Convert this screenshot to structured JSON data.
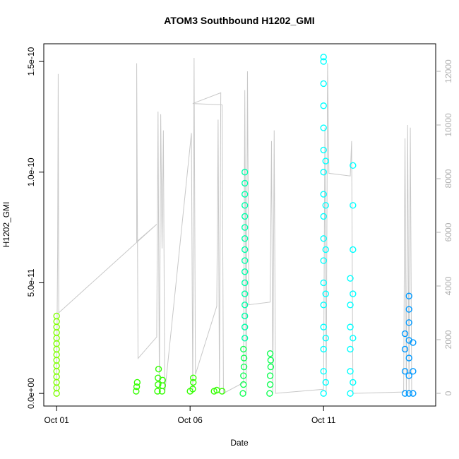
{
  "chart_data": {
    "type": "scatter",
    "title": "ATOM3 Southbound H1202_GMI",
    "x_label": "Date",
    "y_label": "H1202_GMI",
    "xlim": [
      0.52,
      15.2
    ],
    "xticks": [
      {
        "value": 1,
        "label": "Oct 01"
      },
      {
        "value": 6,
        "label": "Oct 06"
      },
      {
        "value": 11,
        "label": "Oct 11"
      }
    ],
    "ylim": [
      -5.7e-12,
      1.58e-10
    ],
    "yticks": [
      {
        "value": 0,
        "label": "0.0e+00"
      },
      {
        "value": 5e-11,
        "label": "5.0e-11"
      },
      {
        "value": 1e-10,
        "label": "1.0e-10"
      },
      {
        "value": 1.5e-10,
        "label": "1.5e-10"
      }
    ],
    "y2lim": [
      -474,
      13026
    ],
    "y2ticks": [
      0,
      2000,
      4000,
      6000,
      8000,
      10000,
      12000
    ],
    "y2_color": "#b0b0b0",
    "series": [
      {
        "type": "line",
        "axis": "y2",
        "color": "#c8c8c8",
        "x": [
          1.0,
          1.04,
          1.06,
          1.08,
          4.75,
          4.0,
          4.0,
          4.05,
          4.75,
          4.8,
          4.85,
          4.9,
          4.95,
          5.0,
          5.05,
          6.05,
          6.1,
          6.15,
          6.2,
          7.0,
          7.05,
          7.1,
          7.15,
          6.1,
          7.2,
          7.25,
          8.0,
          8.05,
          8.1,
          8.15,
          8.2,
          9.0,
          9.05,
          9.1,
          9.15,
          9.2,
          11.0,
          11.05,
          11.1,
          11.15,
          11.2,
          12.0,
          12.05,
          12.1,
          12.15,
          14.0,
          14.05,
          14.1,
          14.15,
          14.2,
          14.25,
          14.3
        ],
        "values": [
          50,
          5400,
          11900,
          3000,
          6300,
          5650,
          12300,
          1300,
          2100,
          10500,
          0,
          10400,
          5400,
          9800,
          0,
          9700,
          0,
          12500,
          700,
          3250,
          10200,
          0,
          11200,
          10800,
          10750,
          0,
          400,
          11300,
          0,
          12000,
          3300,
          3400,
          9400,
          0,
          9800,
          0,
          150,
          9900,
          0,
          12300,
          8200,
          8100,
          9400,
          0,
          0,
          50,
          9500,
          0,
          10000,
          0,
          9900,
          50
        ]
      },
      {
        "color": "#7fff00",
        "x": [
          1,
          1,
          1,
          1,
          1,
          1,
          1,
          1,
          1,
          1,
          1,
          1,
          1,
          1,
          1
        ],
        "values": [
          0,
          2.5e-12,
          5e-12,
          7.5e-12,
          1e-11,
          1.25e-11,
          1.5e-11,
          1.75e-11,
          2e-11,
          2.25e-11,
          2.5e-11,
          2.75e-11,
          3e-11,
          3.25e-11,
          3.5e-11
        ]
      },
      {
        "color": "#33ff00",
        "x": [
          3.98,
          4.0,
          4.02,
          4.78,
          4.8,
          4.8,
          4.82,
          4.95,
          4.97,
          4.97,
          6.0,
          6.1,
          6.12,
          6.12,
          6.9,
          7.0,
          7.2
        ],
        "values": [
          1e-12,
          3e-12,
          5e-12,
          1e-12,
          4e-12,
          7e-12,
          1.1e-11,
          1e-12,
          3.5e-12,
          6e-12,
          1e-12,
          2e-12,
          5e-12,
          7e-12,
          1e-12,
          1.5e-12,
          1e-12
        ]
      },
      {
        "color": "#11ff55",
        "x": [
          7.98,
          8.0,
          8.0,
          8.02,
          8.02,
          8.0,
          8.98,
          9.0,
          9.0,
          9.02,
          9.02,
          9.0
        ],
        "values": [
          0,
          4e-12,
          8e-12,
          1.2e-11,
          1.6e-11,
          2e-11,
          0,
          4e-12,
          8e-12,
          1.2e-11,
          1.5e-11,
          1.8e-11
        ]
      },
      {
        "color": "#00ffaa",
        "x": [
          8.05,
          8.05,
          8.05,
          8.05,
          8.05,
          8.05,
          8.05,
          8.05,
          8.05,
          8.05,
          8.05,
          8.05,
          8.05,
          8.05,
          8.05,
          8.05
        ],
        "values": [
          2.5e-11,
          3e-11,
          3.5e-11,
          4e-11,
          4.5e-11,
          5e-11,
          5.5e-11,
          6e-11,
          6.5e-11,
          7e-11,
          7.5e-11,
          8e-11,
          8.5e-11,
          9e-11,
          9.5e-11,
          1e-10
        ]
      },
      {
        "color": "#00ffff",
        "x": [
          11,
          11,
          11,
          11,
          11,
          11,
          11,
          11,
          11,
          11,
          11,
          11,
          11,
          11,
          11,
          11,
          11,
          11.08,
          11.08,
          11.08,
          11.08,
          11.08,
          11.08,
          12,
          12,
          12,
          12,
          12,
          12,
          12.1,
          12.1,
          12.1,
          12.1,
          12.1,
          12.1
        ],
        "values": [
          0,
          1e-11,
          2e-11,
          3e-11,
          4e-11,
          5e-11,
          6e-11,
          7e-11,
          8e-11,
          9e-11,
          1e-10,
          1.1e-10,
          1.2e-10,
          1.3e-10,
          1.4e-10,
          1.5e-10,
          1.52e-10,
          5e-12,
          2.5e-11,
          4.5e-11,
          6.5e-11,
          8.5e-11,
          1.05e-10,
          0,
          1e-11,
          2e-11,
          3e-11,
          4e-11,
          5.2e-11,
          5e-12,
          2.5e-11,
          4.5e-11,
          6.5e-11,
          8.5e-11,
          1.03e-10
        ]
      },
      {
        "color": "#0099ff",
        "x": [
          14.2,
          14.2,
          14.2,
          14.2,
          14.2,
          14.2,
          14.2,
          14.05,
          14.05,
          14.05,
          14.05,
          14.35,
          14.35,
          14.35
        ],
        "values": [
          0,
          8e-12,
          1.6e-11,
          2.4e-11,
          3.2e-11,
          3.8e-11,
          4.4e-11,
          0,
          1e-11,
          2e-11,
          2.7e-11,
          0,
          1e-11,
          2.3e-11
        ]
      }
    ]
  }
}
